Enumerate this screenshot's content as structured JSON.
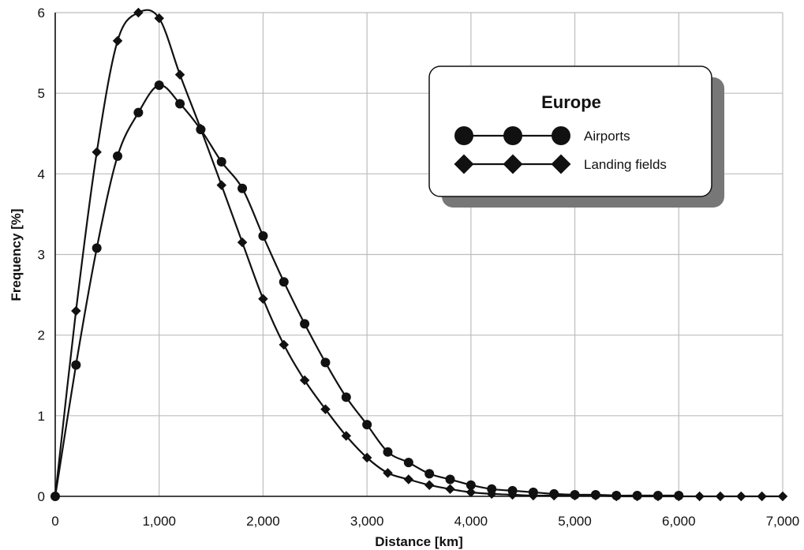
{
  "chart_data": {
    "type": "line",
    "title": "",
    "xlabel": "Distance [km]",
    "ylabel": "Frequency [%]",
    "xlim": [
      0,
      7000
    ],
    "ylim": [
      0,
      6
    ],
    "xticks": [
      0,
      1000,
      2000,
      3000,
      4000,
      5000,
      6000,
      7000
    ],
    "xtick_labels": [
      "0",
      "1,000",
      "2,000",
      "3,000",
      "4,000",
      "5,000",
      "6,000",
      "7,000"
    ],
    "yticks": [
      0,
      1,
      2,
      3,
      4,
      5,
      6
    ],
    "ytick_labels": [
      "0",
      "1",
      "2",
      "3",
      "4",
      "5",
      "6"
    ],
    "grid": true,
    "legend": {
      "title": "Europe",
      "placement": "top-right"
    },
    "series": [
      {
        "name": "Airports",
        "marker": "circle",
        "x": [
          0,
          200,
          400,
          600,
          800,
          1000,
          1200,
          1400,
          1600,
          1800,
          2000,
          2200,
          2400,
          2600,
          2800,
          3000,
          3200,
          3400,
          3600,
          3800,
          4000,
          4200,
          4400,
          4600,
          4800,
          5000,
          5200,
          5400,
          5600,
          5800,
          6000
        ],
        "y": [
          0,
          1.63,
          3.08,
          4.22,
          4.76,
          5.1,
          4.87,
          4.55,
          4.15,
          3.82,
          3.23,
          2.66,
          2.14,
          1.66,
          1.23,
          0.89,
          0.55,
          0.42,
          0.28,
          0.21,
          0.14,
          0.09,
          0.07,
          0.05,
          0.03,
          0.02,
          0.02,
          0.01,
          0.01,
          0.01,
          0.01
        ]
      },
      {
        "name": "Landing fields",
        "marker": "diamond",
        "x": [
          0,
          200,
          400,
          600,
          800,
          1000,
          1200,
          1400,
          1600,
          1800,
          2000,
          2200,
          2400,
          2600,
          2800,
          3000,
          3200,
          3400,
          3600,
          3800,
          4000,
          4200,
          4400,
          4600,
          4800,
          5000,
          5200,
          5400,
          5600,
          5800,
          6000,
          6200,
          6400,
          6600,
          6800,
          7000
        ],
        "y": [
          0,
          2.3,
          4.27,
          5.65,
          6.0,
          5.93,
          5.23,
          4.56,
          3.86,
          3.15,
          2.45,
          1.88,
          1.44,
          1.08,
          0.75,
          0.48,
          0.29,
          0.21,
          0.14,
          0.09,
          0.05,
          0.03,
          0.02,
          0.01,
          0.01,
          0.01,
          0.01,
          0.0,
          0.0,
          0.0,
          0.0,
          0.0,
          0.0,
          0.0,
          0.0,
          0.0
        ]
      }
    ]
  },
  "colors": {
    "line": "#111111",
    "grid": "#bdbdbd",
    "axis": "#111111",
    "legend_shadow": "#777777",
    "legend_bg": "#ffffff",
    "background": "#ffffff"
  }
}
